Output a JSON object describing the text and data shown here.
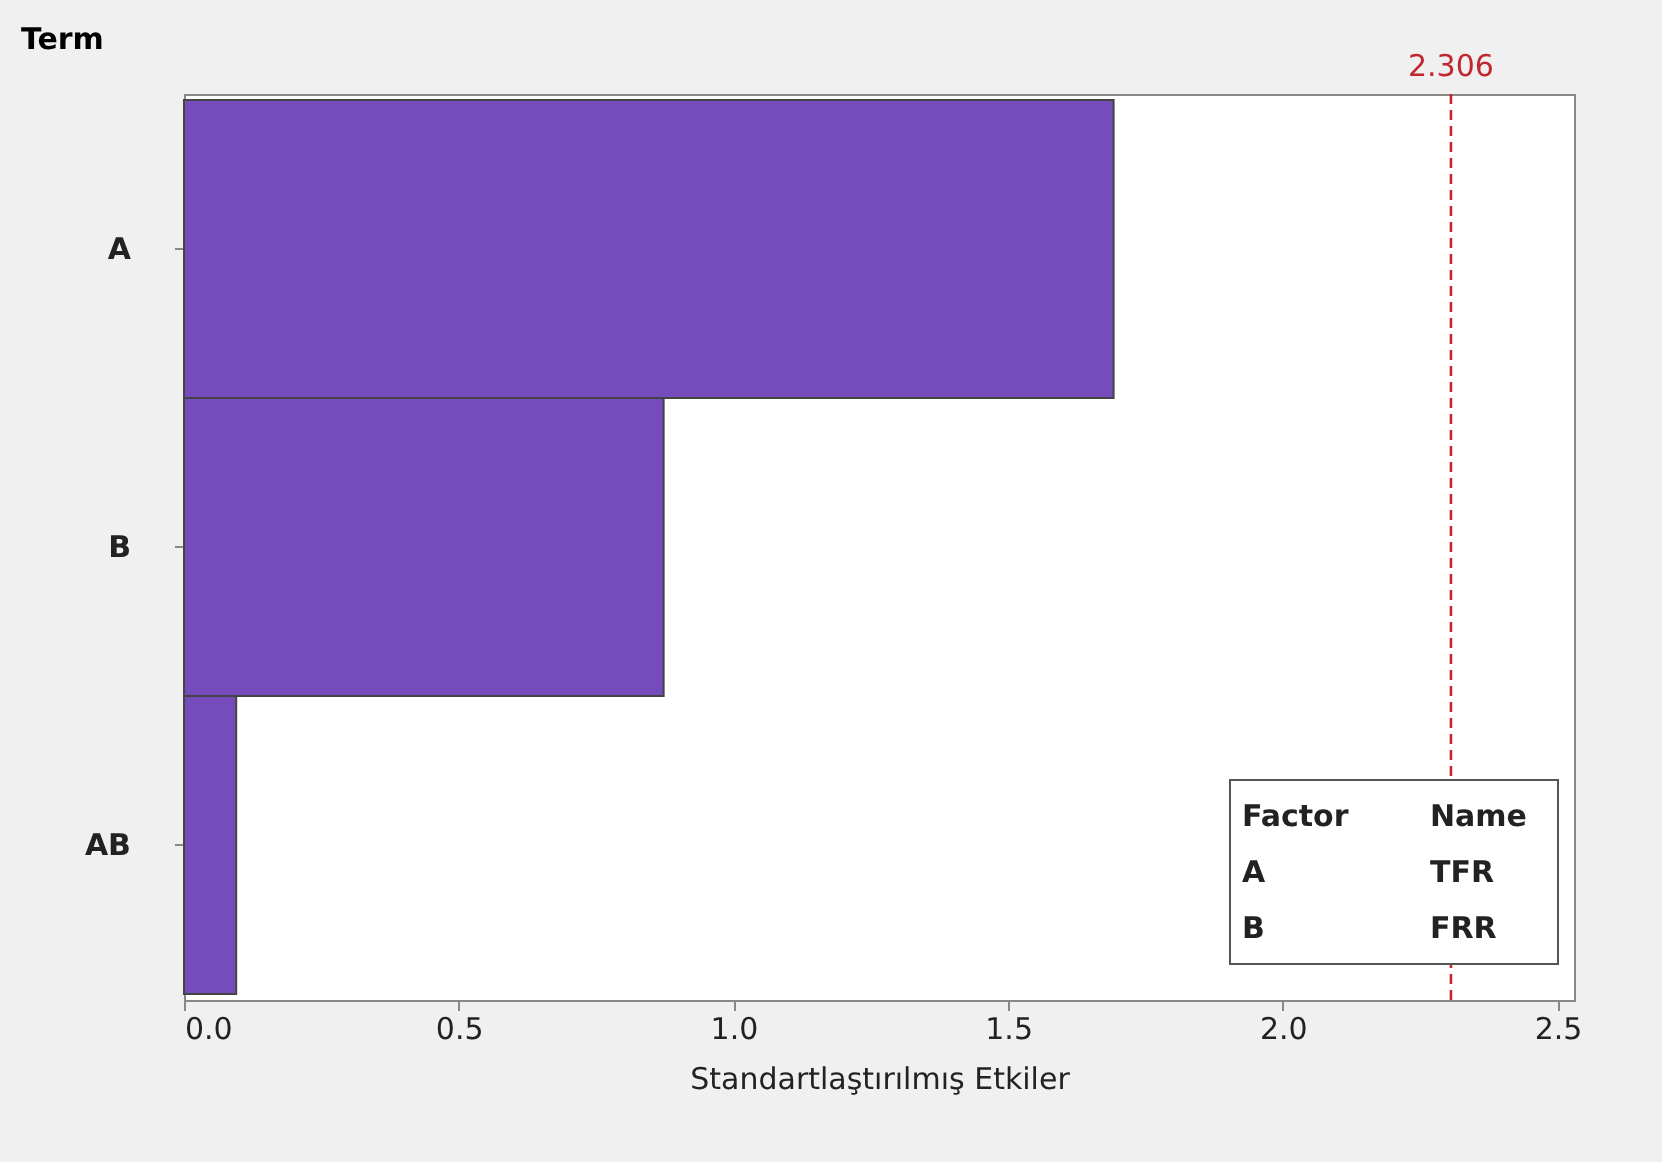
{
  "chart_data": {
    "type": "bar",
    "orientation": "horizontal",
    "categories": [
      "A",
      "B",
      "AB"
    ],
    "values": [
      1.692,
      0.873,
      0.095
    ],
    "color": "#764cbc",
    "xlabel": "Standartlaştırılmış Etkiler",
    "ylabel": "Term",
    "xlim": [
      0,
      2.53
    ],
    "xticks": [
      {
        "value": 0,
        "label": "0.0"
      },
      {
        "value": 0.5,
        "label": "0.5"
      },
      {
        "value": 1,
        "label": "1.0"
      },
      {
        "value": 1.5,
        "label": "1.5"
      },
      {
        "value": 2,
        "label": "2.0"
      },
      {
        "value": 2.5,
        "label": "2.5"
      }
    ],
    "ref_lines": [
      {
        "axis": "x",
        "value": 2.306,
        "label": "2.306",
        "color": "#c0282d",
        "line_style": "dashed"
      }
    ],
    "annotations": [
      "Factor",
      "Name",
      "A",
      "TFR",
      "B",
      "FRR"
    ],
    "grid": false
  }
}
